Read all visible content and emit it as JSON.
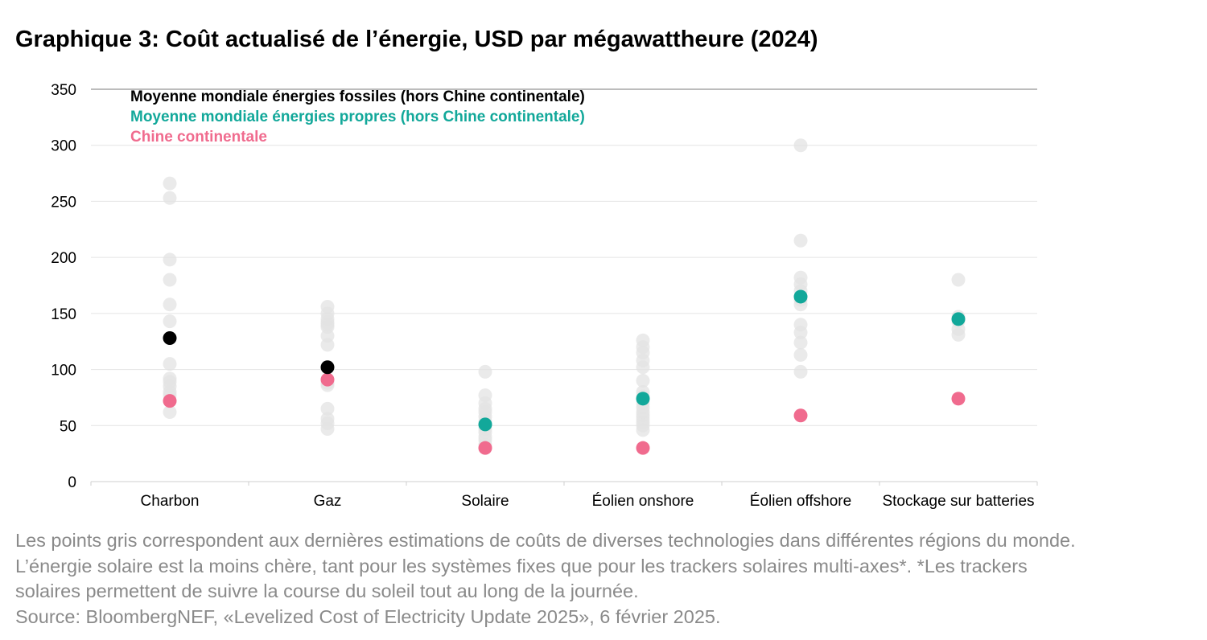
{
  "title": "Graphique 3: Coût actualisé de l’énergie, USD par mégawattheure (2024)",
  "notes": [
    "Les points gris correspondent aux dernières estimations de coûts de diverses technologies dans différentes régions du monde.",
    "L’énergie solaire est la moins chère, tant pour les systèmes fixes que pour les trackers solaires multi-axes*. *Les trackers",
    "solaires permettent de suivre la course du soleil tout au long de la journée.",
    "Source: BloombergNEF, «Levelized Cost of Electricity Update 2025», 6 février 2025."
  ],
  "colors": {
    "fossil": "#000000",
    "clean": "#12a89a",
    "china": "#f06b8e",
    "regional": "#e3e3e3"
  },
  "chart_data": {
    "type": "scatter",
    "categories": [
      "Charbon",
      "Gaz",
      "Solaire",
      "Éolien onshore",
      "Éolien offshore",
      "Stockage sur batteries"
    ],
    "ylim": [
      0,
      350
    ],
    "yticks": [
      0,
      50,
      100,
      150,
      200,
      250,
      300,
      350
    ],
    "legend_position": "top-left",
    "grid": true,
    "series": [
      {
        "name": "Moyenne mondiale énergies fossiles (hors Chine continentale)",
        "color": "#000000",
        "values": [
          128,
          102,
          null,
          null,
          null,
          null
        ]
      },
      {
        "name": "Moyenne mondiale énergies propres (hors Chine continentale)",
        "color": "#12a89a",
        "values": [
          null,
          null,
          51,
          74,
          165,
          145
        ]
      },
      {
        "name": "Chine continentale",
        "color": "#f06b8e",
        "values": [
          72,
          91,
          30,
          30,
          59,
          74
        ]
      }
    ],
    "regional_estimates": [
      [
        266,
        253,
        198,
        180,
        158,
        143,
        105,
        92,
        89,
        85,
        80,
        77,
        62
      ],
      [
        156,
        150,
        145,
        142,
        140,
        138,
        130,
        122,
        88,
        86,
        65,
        56,
        52,
        47
      ],
      [
        98,
        77,
        70,
        65,
        62,
        58,
        54,
        50,
        47,
        44,
        40,
        37,
        33,
        30
      ],
      [
        126,
        120,
        115,
        108,
        102,
        90,
        80,
        76,
        70,
        66,
        62,
        59,
        56,
        53,
        50,
        46
      ],
      [
        300,
        215,
        182,
        176,
        170,
        162,
        158,
        140,
        133,
        124,
        113,
        98
      ],
      [
        180,
        147,
        143,
        136,
        131
      ]
    ]
  }
}
